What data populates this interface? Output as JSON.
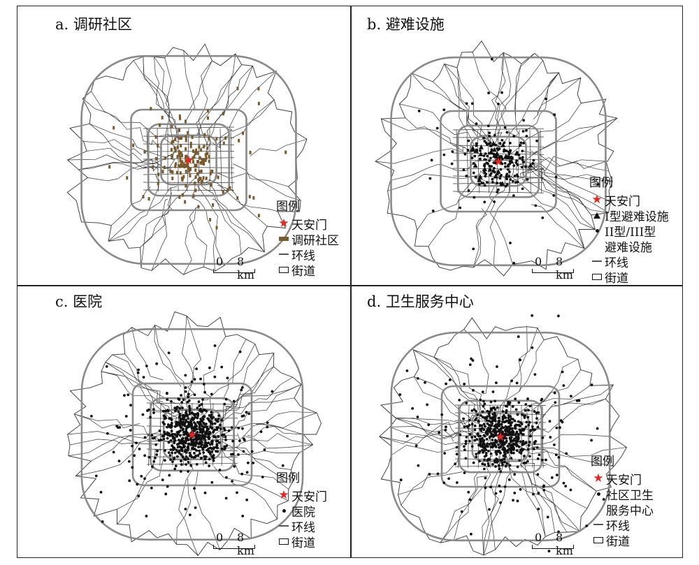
{
  "panels": [
    {
      "id": "a",
      "title": "a. 调研社区",
      "legend_title": "图例",
      "legend": [
        {
          "symbol": "red-star",
          "label": "天安门"
        },
        {
          "symbol": "brown-bar",
          "label": "调研社区"
        },
        {
          "symbol": "ring-line",
          "label": "环线"
        },
        {
          "symbol": "street-box",
          "label": "街道"
        }
      ],
      "point_layer": "survey-community",
      "point_count": 160,
      "seed": 11
    },
    {
      "id": "b",
      "title": "b. 避难设施",
      "legend_title": "图例",
      "legend": [
        {
          "symbol": "red-star",
          "label": "天安门"
        },
        {
          "symbol": "triangle",
          "label": "I型避难设施"
        },
        {
          "symbol": "dot",
          "label": "II型/III型"
        },
        {
          "symbol": "none",
          "label": "避难设施"
        },
        {
          "symbol": "ring-line",
          "label": "环线"
        },
        {
          "symbol": "street-box",
          "label": "街道"
        }
      ],
      "point_layer": "shelter",
      "point_count": 200,
      "seed": 23
    },
    {
      "id": "c",
      "title": "c. 医院",
      "legend_title": "图例",
      "legend": [
        {
          "symbol": "red-star",
          "label": "天安门"
        },
        {
          "symbol": "dot",
          "label": "医院"
        },
        {
          "symbol": "ring-line",
          "label": "环线"
        },
        {
          "symbol": "street-box",
          "label": "街道"
        }
      ],
      "point_layer": "hospital",
      "point_count": 650,
      "seed": 37
    },
    {
      "id": "d",
      "title": "d. 卫生服务中心",
      "legend_title": "图例",
      "legend": [
        {
          "symbol": "red-star",
          "label": "天安门"
        },
        {
          "symbol": "dot",
          "label": "社区卫生"
        },
        {
          "symbol": "none",
          "label": "服务中心"
        },
        {
          "symbol": "ring-line",
          "label": "环线"
        },
        {
          "symbol": "street-box",
          "label": "街道"
        }
      ],
      "point_layer": "health-center",
      "point_count": 620,
      "seed": 51
    }
  ],
  "scale_bar": {
    "start": "0",
    "end": "8 km"
  },
  "colors": {
    "star": "#e8251f",
    "survey_community": "#7a5a2b",
    "ring_road": "#8a8a8a",
    "street_boundary": "#333333",
    "points": "#111111"
  }
}
